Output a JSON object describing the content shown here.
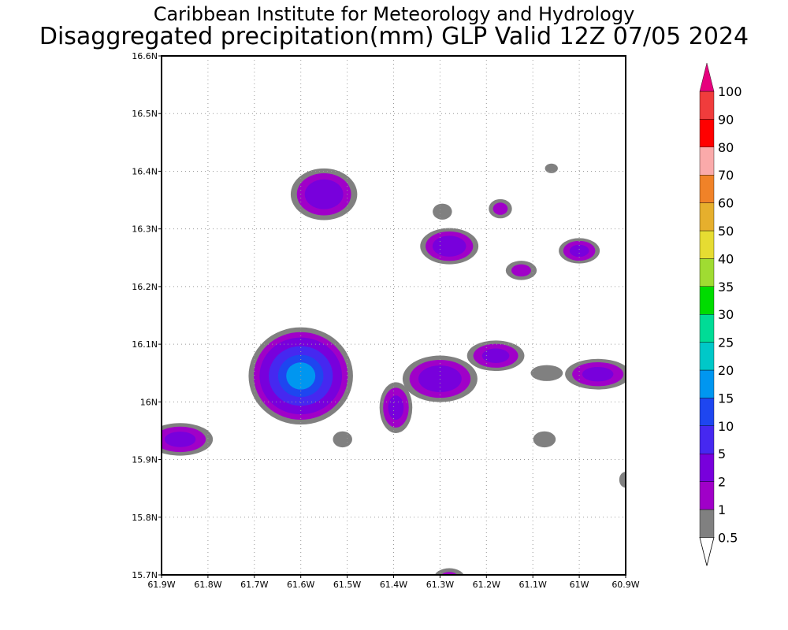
{
  "header": {
    "title": "Caribbean Institute for Meteorology and Hydrology",
    "subtitle": "Disaggregated precipitation(mm) GLP Valid 12Z 07/05 2024"
  },
  "map": {
    "lon_range": [
      -61.9,
      -60.9
    ],
    "lat_range": [
      15.7,
      16.6
    ],
    "lat_ticks": [
      {
        "v": 16.6,
        "label": "16.6N"
      },
      {
        "v": 16.5,
        "label": "16.5N"
      },
      {
        "v": 16.4,
        "label": "16.4N"
      },
      {
        "v": 16.3,
        "label": "16.3N"
      },
      {
        "v": 16.2,
        "label": "16.2N"
      },
      {
        "v": 16.1,
        "label": "16.1N"
      },
      {
        "v": 16.0,
        "label": "16N"
      },
      {
        "v": 15.9,
        "label": "15.9N"
      },
      {
        "v": 15.8,
        "label": "15.8N"
      },
      {
        "v": 15.7,
        "label": "15.7N"
      }
    ],
    "lon_ticks": [
      {
        "v": -61.9,
        "label": "61.9W"
      },
      {
        "v": -61.8,
        "label": "61.8W"
      },
      {
        "v": -61.7,
        "label": "61.7W"
      },
      {
        "v": -61.6,
        "label": "61.6W"
      },
      {
        "v": -61.5,
        "label": "61.5W"
      },
      {
        "v": -61.4,
        "label": "61.4W"
      },
      {
        "v": -61.3,
        "label": "61.3W"
      },
      {
        "v": -61.2,
        "label": "61.2W"
      },
      {
        "v": -61.1,
        "label": "61.1W"
      },
      {
        "v": -61.0,
        "label": "61W"
      },
      {
        "v": -60.9,
        "label": "60.9W"
      }
    ],
    "grid": true,
    "cells": [
      {
        "lon": -61.55,
        "lat": 16.36,
        "rx": 0.08,
        "ry": 0.05,
        "max": 4
      },
      {
        "lon": -61.28,
        "lat": 16.27,
        "rx": 0.07,
        "ry": 0.035,
        "max": 4
      },
      {
        "lon": -61.295,
        "lat": 16.33,
        "rx": 0.03,
        "ry": 0.02,
        "max": 0.8
      },
      {
        "lon": -61.06,
        "lat": 16.405,
        "rx": 0.02,
        "ry": 0.012,
        "max": 0.8
      },
      {
        "lon": -61.17,
        "lat": 16.335,
        "rx": 0.03,
        "ry": 0.02,
        "max": 1.6
      },
      {
        "lon": -61.0,
        "lat": 16.262,
        "rx": 0.05,
        "ry": 0.025,
        "max": 3
      },
      {
        "lon": -61.125,
        "lat": 16.228,
        "rx": 0.04,
        "ry": 0.02,
        "max": 1.6
      },
      {
        "lon": -61.6,
        "lat": 16.045,
        "rx": 0.12,
        "ry": 0.09,
        "max": 20
      },
      {
        "lon": -61.3,
        "lat": 16.04,
        "rx": 0.09,
        "ry": 0.045,
        "max": 4
      },
      {
        "lon": -61.395,
        "lat": 15.99,
        "rx": 0.04,
        "ry": 0.05,
        "max": 3
      },
      {
        "lon": -61.18,
        "lat": 16.08,
        "rx": 0.07,
        "ry": 0.03,
        "max": 3
      },
      {
        "lon": -60.96,
        "lat": 16.048,
        "rx": 0.08,
        "ry": 0.03,
        "max": 3
      },
      {
        "lon": -61.07,
        "lat": 16.05,
        "rx": 0.05,
        "ry": 0.02,
        "max": 0.8
      },
      {
        "lon": -61.86,
        "lat": 15.935,
        "rx": 0.08,
        "ry": 0.032,
        "max": 3
      },
      {
        "lon": -61.51,
        "lat": 15.935,
        "rx": 0.03,
        "ry": 0.02,
        "max": 0.8
      },
      {
        "lon": -61.075,
        "lat": 15.935,
        "rx": 0.035,
        "ry": 0.02,
        "max": 0.8
      },
      {
        "lon": -60.9,
        "lat": 15.865,
        "rx": 0.02,
        "ry": 0.02,
        "max": 0.8
      },
      {
        "lon": -61.28,
        "lat": 15.695,
        "rx": 0.04,
        "ry": 0.02,
        "max": 1.5
      }
    ]
  },
  "colorbar": {
    "levels": [
      {
        "label": "0.5",
        "color": "#ffffff"
      },
      {
        "label": "1",
        "color": "#808080"
      },
      {
        "label": "2",
        "color": "#a000c8"
      },
      {
        "label": "5",
        "color": "#7800dc"
      },
      {
        "label": "10",
        "color": "#4628f0"
      },
      {
        "label": "15",
        "color": "#1e46f0"
      },
      {
        "label": "20",
        "color": "#0096f0"
      },
      {
        "label": "25",
        "color": "#00c8c8"
      },
      {
        "label": "30",
        "color": "#00dc96"
      },
      {
        "label": "35",
        "color": "#00dc00"
      },
      {
        "label": "40",
        "color": "#a0dc32"
      },
      {
        "label": "50",
        "color": "#e6dc32"
      },
      {
        "label": "60",
        "color": "#e6af2d"
      },
      {
        "label": "70",
        "color": "#f08228"
      },
      {
        "label": "80",
        "color": "#faaaaa"
      },
      {
        "label": "90",
        "color": "#ff0000"
      },
      {
        "label": "100",
        "color": "#f03c3c"
      }
    ],
    "top_color": "#e6007d"
  }
}
